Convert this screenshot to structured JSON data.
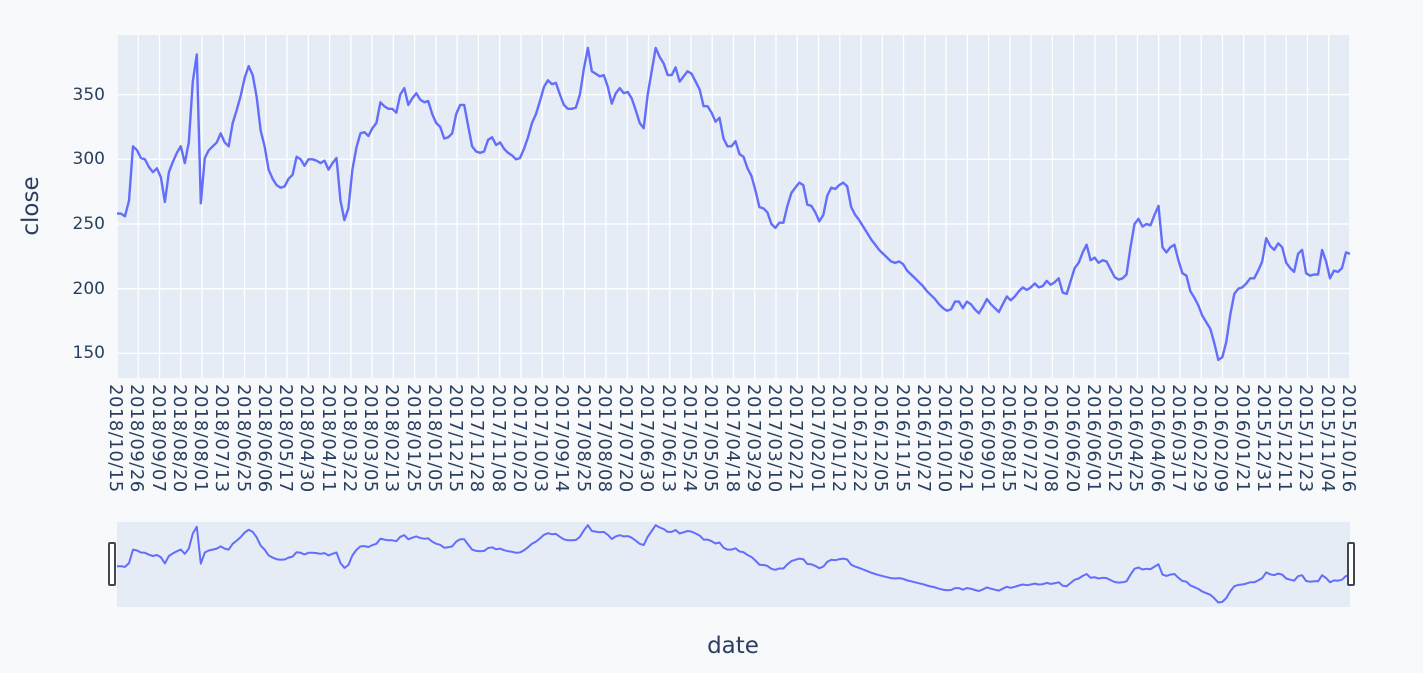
{
  "page": {
    "background": "#f8f9fb"
  },
  "chart_data": {
    "type": "line",
    "title": "",
    "xlabel": "date",
    "ylabel": "close",
    "series_name": "close",
    "line_color": "#636efa",
    "plot_bg": "#e5ecf6",
    "grid_color": "#ffffff",
    "text_color": "#2a3f5f",
    "legend": "none",
    "grid": "on",
    "rangeslider": "on",
    "y_ticks": [
      150,
      200,
      250,
      300,
      350
    ],
    "y_range": [
      131,
      396
    ],
    "x_tick_labels": [
      "2018/10/15",
      "2018/09/26",
      "2018/09/07",
      "2018/08/20",
      "2018/08/01",
      "2018/07/13",
      "2018/06/25",
      "2018/06/06",
      "2018/05/17",
      "2018/04/30",
      "2018/04/11",
      "2018/03/22",
      "2018/03/05",
      "2018/02/13",
      "2018/01/25",
      "2018/01/05",
      "2017/12/15",
      "2017/11/28",
      "2017/11/08",
      "2017/10/20",
      "2017/10/03",
      "2017/09/14",
      "2017/08/25",
      "2017/08/08",
      "2017/07/20",
      "2017/06/30",
      "2017/06/13",
      "2017/05/24",
      "2017/05/05",
      "2017/04/18",
      "2017/03/29",
      "2017/03/10",
      "2017/02/21",
      "2017/02/01",
      "2017/01/12",
      "2016/12/22",
      "2016/12/05",
      "2016/11/15",
      "2016/10/27",
      "2016/10/10",
      "2016/09/21",
      "2016/09/01",
      "2016/08/15",
      "2016/07/27",
      "2016/07/08",
      "2016/06/20",
      "2016/06/01",
      "2016/05/12",
      "2016/04/25",
      "2016/04/06",
      "2016/03/17",
      "2016/02/29",
      "2016/02/09",
      "2016/01/21",
      "2015/12/31",
      "2015/12/11",
      "2015/11/23",
      "2015/11/04",
      "2015/10/16"
    ],
    "values": [
      258,
      258,
      256,
      268,
      310,
      307,
      301,
      300,
      294,
      290,
      293,
      286,
      267,
      290,
      298,
      305,
      310,
      297,
      313,
      360,
      381,
      266,
      301,
      307,
      310,
      313,
      320,
      313,
      310,
      328,
      338,
      349,
      363,
      372,
      365,
      348,
      322,
      310,
      292,
      285,
      280,
      278,
      279,
      285,
      288,
      302,
      300,
      295,
      300,
      300,
      299,
      297,
      299,
      292,
      297,
      301,
      268,
      253,
      262,
      292,
      309,
      320,
      321,
      318,
      324,
      328,
      344,
      341,
      339,
      339,
      336,
      350,
      355,
      342,
      347,
      351,
      346,
      344,
      345,
      335,
      328,
      325,
      316,
      317,
      320,
      335,
      342,
      342,
      326,
      310,
      306,
      305,
      306,
      315,
      317,
      311,
      313,
      308,
      305,
      303,
      300,
      301,
      308,
      317,
      328,
      335,
      345,
      356,
      361,
      358,
      359,
      350,
      342,
      339,
      339,
      340,
      350,
      370,
      386,
      368,
      366,
      364,
      365,
      356,
      343,
      351,
      355,
      351,
      352,
      347,
      338,
      328,
      324,
      350,
      368,
      386,
      379,
      374,
      365,
      365,
      371,
      360,
      364,
      368,
      366,
      360,
      354,
      341,
      341,
      336,
      329,
      332,
      316,
      310,
      310,
      314,
      304,
      302,
      293,
      287,
      276,
      263,
      262,
      259,
      250,
      247,
      251,
      251,
      264,
      274,
      278,
      282,
      280,
      265,
      264,
      259,
      252,
      257,
      272,
      278,
      277,
      280,
      282,
      279,
      263,
      257,
      253,
      248,
      243,
      238,
      234,
      230,
      227,
      224,
      221,
      220,
      221,
      219,
      214,
      211,
      208,
      205,
      202,
      198,
      195,
      192,
      188,
      185,
      183,
      184,
      190,
      190,
      185,
      190,
      188,
      184,
      181,
      186,
      192,
      188,
      185,
      182,
      188,
      194,
      191,
      194,
      198,
      201,
      199,
      201,
      204,
      201,
      202,
      206,
      203,
      205,
      208,
      197,
      196,
      206,
      216,
      220,
      228,
      234,
      222,
      224,
      220,
      222,
      221,
      215,
      209,
      207,
      208,
      211,
      232,
      250,
      254,
      248,
      250,
      249,
      257,
      264,
      232,
      228,
      232,
      234,
      222,
      212,
      210,
      198,
      193,
      187,
      179,
      174,
      169,
      158,
      145,
      147,
      159,
      180,
      196,
      200,
      201,
      204,
      208,
      208,
      214,
      221,
      239,
      233,
      230,
      235,
      232,
      220,
      216,
      213,
      227,
      230,
      212,
      210,
      211,
      211,
      230,
      221,
      208,
      214,
      213,
      216,
      228,
      227
    ]
  }
}
